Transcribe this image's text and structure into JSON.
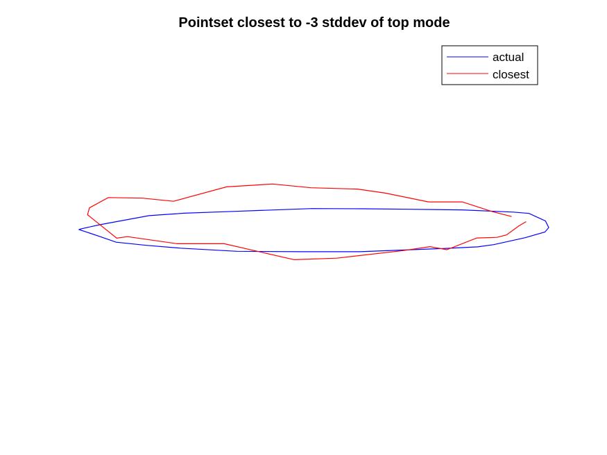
{
  "chart_data": {
    "type": "line",
    "title": "Pointset closest to -3 stddev of top mode",
    "axes_visible": false,
    "grid": false,
    "legend_position": "top-right",
    "xlim": [
      0,
      1
    ],
    "ylim": [
      0,
      1
    ],
    "series": [
      {
        "name": "actual",
        "color": "#0000ff",
        "x": [
          0.001,
          0.044,
          0.149,
          0.223,
          0.313,
          0.496,
          0.606,
          0.701,
          0.815,
          0.925,
          0.958,
          0.993,
          1.0,
          0.992,
          0.949,
          0.883,
          0.849,
          0.782,
          0.598,
          0.474,
          0.336,
          0.216,
          0.143,
          0.079,
          0.045,
          0.013,
          0.0,
          0.001
        ],
        "y": [
          0.491,
          0.511,
          0.552,
          0.563,
          0.57,
          0.584,
          0.583,
          0.581,
          0.578,
          0.568,
          0.562,
          0.528,
          0.498,
          0.478,
          0.452,
          0.421,
          0.411,
          0.404,
          0.389,
          0.389,
          0.391,
          0.405,
          0.418,
          0.432,
          0.457,
          0.48,
          0.489,
          0.491
        ]
      },
      {
        "name": "closest",
        "color": "#ff0000",
        "x": [
          0.921,
          0.879,
          0.816,
          0.744,
          0.652,
          0.593,
          0.494,
          0.412,
          0.314,
          0.201,
          0.135,
          0.062,
          0.022,
          0.018,
          0.055,
          0.08,
          0.103,
          0.209,
          0.309,
          0.458,
          0.549,
          0.69,
          0.747,
          0.783,
          0.847,
          0.89,
          0.91,
          0.936,
          0.952
        ],
        "y": [
          0.548,
          0.571,
          0.614,
          0.614,
          0.654,
          0.672,
          0.678,
          0.695,
          0.682,
          0.617,
          0.631,
          0.634,
          0.587,
          0.556,
          0.493,
          0.45,
          0.457,
          0.425,
          0.425,
          0.353,
          0.36,
          0.394,
          0.412,
          0.398,
          0.451,
          0.454,
          0.465,
          0.505,
          0.525
        ]
      }
    ]
  }
}
